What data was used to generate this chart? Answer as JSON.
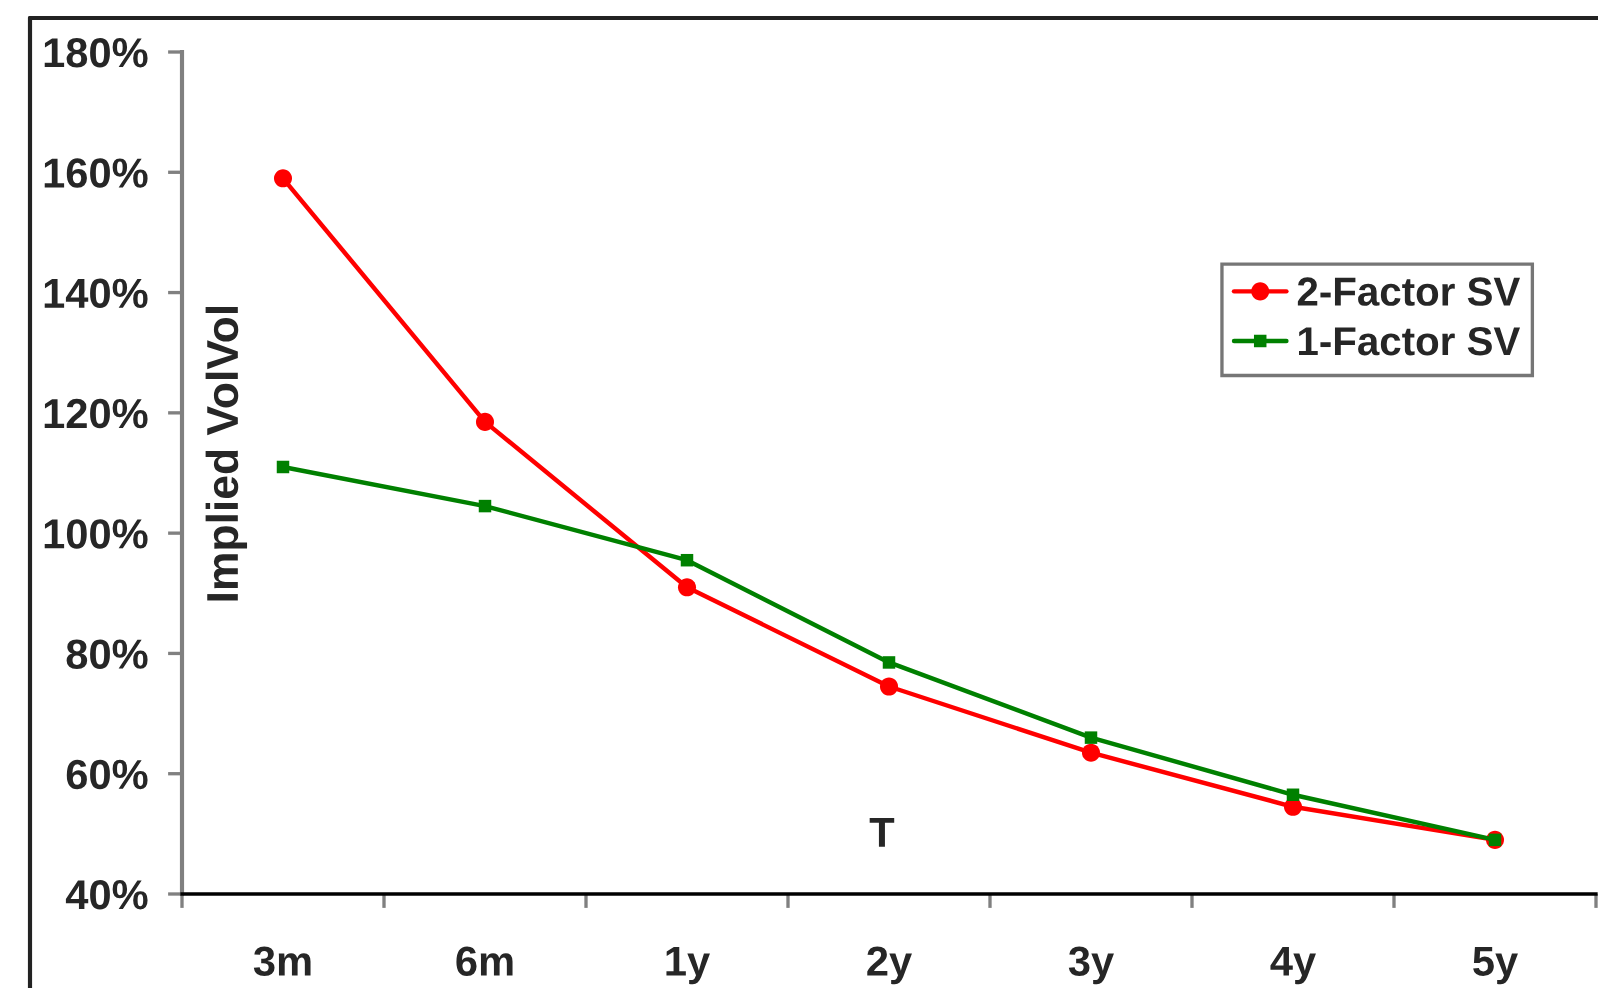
{
  "chart_data": {
    "type": "line",
    "xlabel": "T",
    "ylabel": "Implied VolVol",
    "categories": [
      "3m",
      "6m",
      "1y",
      "2y",
      "3y",
      "4y",
      "5y"
    ],
    "series": [
      {
        "name": "2-Factor SV",
        "color": "#ff0000",
        "marker": "circle",
        "values": [
          159,
          118.5,
          91,
          74.5,
          63.5,
          54.5,
          49
        ]
      },
      {
        "name": "1-Factor SV",
        "color": "#008000",
        "marker": "square",
        "values": [
          111,
          104.5,
          95.5,
          78.5,
          66,
          56.5,
          49
        ]
      }
    ],
    "ylim": [
      40,
      180
    ],
    "yticks": [
      {
        "value": 40,
        "label": "40%"
      },
      {
        "value": 60,
        "label": "60%"
      },
      {
        "value": 80,
        "label": "80%"
      },
      {
        "value": 100,
        "label": "100%"
      },
      {
        "value": 120,
        "label": "120%"
      },
      {
        "value": 140,
        "label": "140%"
      },
      {
        "value": 160,
        "label": "160%"
      },
      {
        "value": 180,
        "label": "180%"
      }
    ],
    "legend": "right",
    "line_style": "solid"
  }
}
